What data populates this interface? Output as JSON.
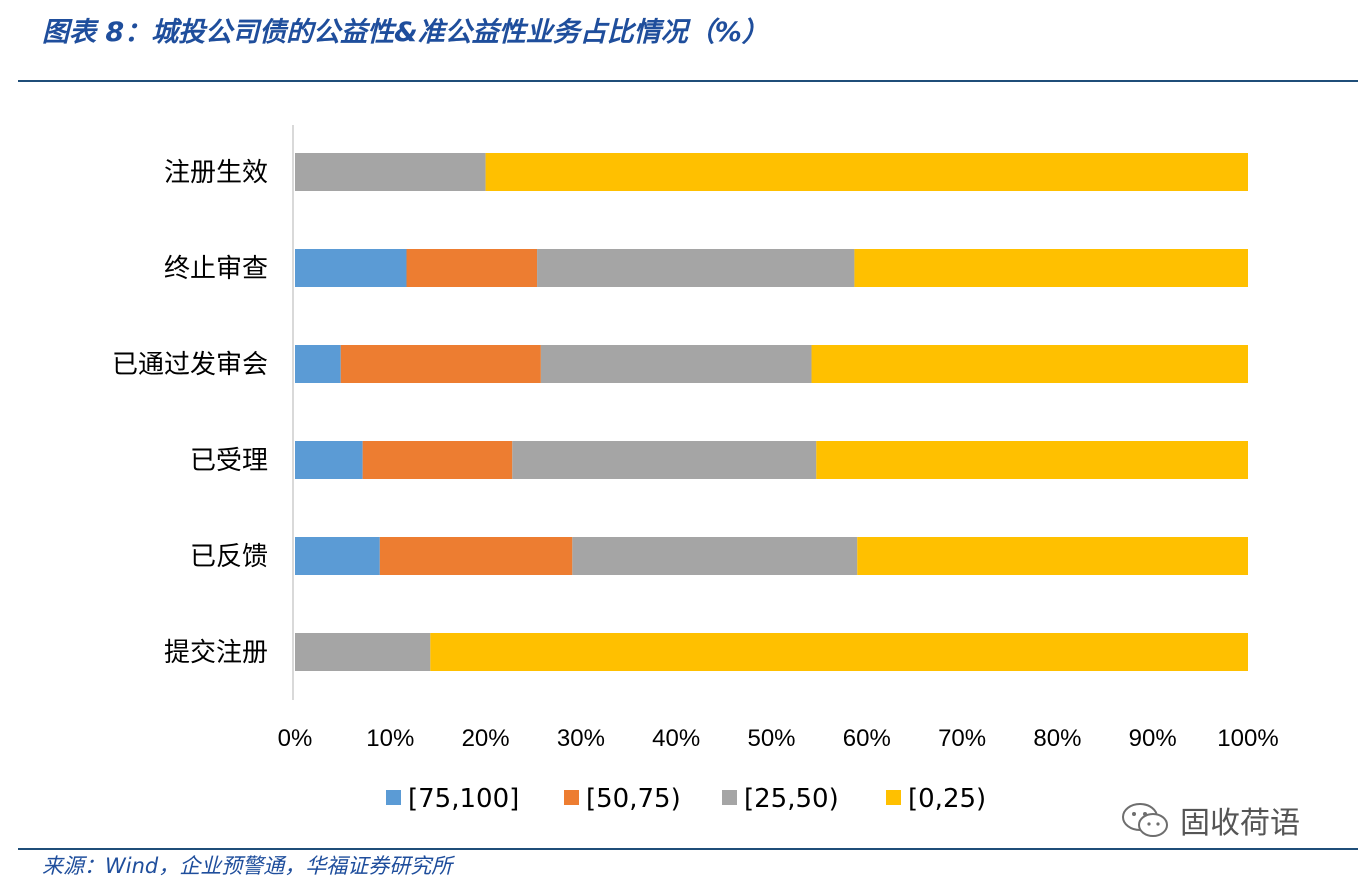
{
  "header": {
    "title": "图表 8：城投公司债的公益性&准公益性业务占比情况（%）"
  },
  "footer": {
    "source": "来源：Wind，企业预警通，华福证券研究所"
  },
  "watermark": {
    "text": "固收荷语",
    "icon": "wechat-icon"
  },
  "chart_data": {
    "type": "bar",
    "orientation": "horizontal",
    "stacked": "percent",
    "categories": [
      "注册生效",
      "终止审查",
      "已通过发审会",
      "已受理",
      "已反馈",
      "提交注册"
    ],
    "series": [
      {
        "name": "[75,100]",
        "color": "#5b9bd5",
        "values": [
          0,
          11.7,
          4.8,
          7.1,
          8.9,
          0
        ]
      },
      {
        "name": "[50,75)",
        "color": "#ed7d31",
        "values": [
          0,
          13.7,
          21.0,
          15.7,
          20.2,
          0
        ]
      },
      {
        "name": "[25,50)",
        "color": "#a5a5a5",
        "values": [
          20.0,
          33.3,
          28.4,
          31.9,
          29.9,
          14.2
        ]
      },
      {
        "name": "[0,25)",
        "color": "#ffc000",
        "values": [
          80.0,
          41.3,
          45.8,
          45.3,
          41.0,
          85.8
        ]
      }
    ],
    "xlim": [
      0,
      100
    ],
    "xticks": [
      "0%",
      "10%",
      "20%",
      "30%",
      "40%",
      "50%",
      "60%",
      "70%",
      "80%",
      "90%",
      "100%"
    ],
    "grid": false,
    "legend_position": "bottom"
  }
}
